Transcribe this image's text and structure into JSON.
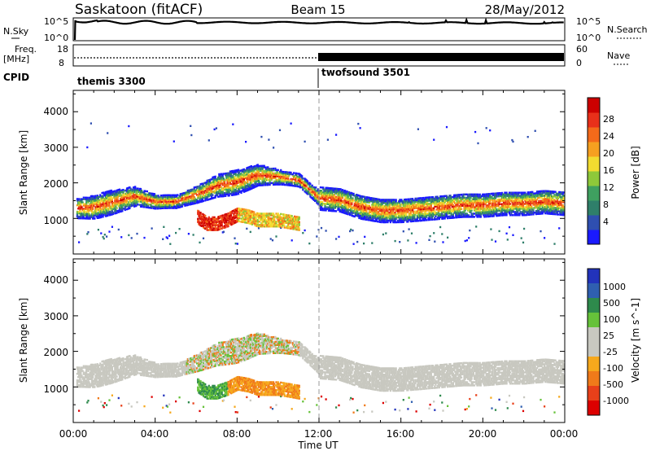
{
  "header": {
    "station": "Saskatoon (fitACF)",
    "beam": "Beam 15",
    "date": "28/May/2012"
  },
  "nsky_panel": {
    "left_label": "N.Sky",
    "left_ticks": [
      "10^5",
      "10^0"
    ],
    "right_ticks": [
      "10^5",
      "10^0"
    ],
    "right_label": "N.Search"
  },
  "freq_panel": {
    "left_label_1": "Freq.",
    "left_label_2": "[MHz]",
    "left_ticks": [
      "18",
      "8"
    ],
    "right_ticks": [
      "60",
      "0"
    ],
    "right_label": "Nave"
  },
  "cpid_panel": {
    "label": "CPID",
    "programs": [
      {
        "name": "themis 3300",
        "start_h": 0
      },
      {
        "name": "twofsound 3501",
        "start_h": 12
      }
    ]
  },
  "power_panel": {
    "ylabel": "Slant Range [km]",
    "yticks": [
      "4000",
      "3000",
      "2000",
      "1000"
    ],
    "colorbar_label": "Power [dB]",
    "colorbar_ticks": [
      "28",
      "24",
      "20",
      "16",
      "12",
      "8",
      "4"
    ],
    "colors": [
      "#1a1aff",
      "#2f4fb0",
      "#2f7f6a",
      "#3fa060",
      "#8ec83a",
      "#f2dc30",
      "#f6a020",
      "#f46a1a",
      "#e8301a",
      "#cc0000"
    ]
  },
  "velocity_panel": {
    "ylabel": "Slant Range [km]",
    "yticks": [
      "4000",
      "3000",
      "2000",
      "1000"
    ],
    "colorbar_label": "Velocity [m s^-1]",
    "colorbar_ticks": [
      "1000",
      "500",
      "100",
      "25",
      "-25",
      "-100",
      "-500",
      "-1000"
    ],
    "colors": [
      "#2233bb",
      "#2f5fb0",
      "#2e8a4c",
      "#66c23a",
      "#c8c8c0",
      "#c8c8c0",
      "#f6a81c",
      "#f07a1a",
      "#e8401a",
      "#dd0000"
    ],
    "ground_scatter_color": "#c8c8c0"
  },
  "xaxis": {
    "label": "Time UT",
    "ticks": [
      "00:00",
      "04:00",
      "08:00",
      "12:00",
      "16:00",
      "20:00",
      "00:00"
    ]
  },
  "chart_data": {
    "type": "heatmap",
    "title": "Saskatoon (fitACF)",
    "subtitle": "Beam 15",
    "date": "28/May/2012",
    "xlabel": "Time UT",
    "ylabel": "Slant Range [km]",
    "xlim_hours": [
      0,
      24
    ],
    "ylim_km": [
      0,
      4600
    ],
    "grid": false,
    "power_scale_db": [
      0,
      32
    ],
    "velocity_scale_ms": [
      -1000,
      1000
    ],
    "scatter_bands": [
      {
        "name": "",
        "t": [
          0,
          1,
          2,
          3,
          4,
          5,
          6,
          7,
          8,
          9,
          10,
          11,
          12,
          13,
          14,
          15,
          16,
          17,
          18,
          19,
          20,
          21,
          22,
          23,
          24
        ],
        "range_km": [
          1300,
          1350,
          1500,
          1650,
          1500,
          1500,
          1700,
          1950,
          2050,
          2250,
          2200,
          2100,
          1600,
          1550,
          1350,
          1250,
          1250,
          1300,
          1350,
          1400,
          1400,
          1450,
          1450,
          1500,
          1450
        ]
      },
      {
        "name": "",
        "t": [
          6.0,
          6.5,
          7,
          7.5,
          8,
          8.5,
          9,
          9.5,
          10,
          10.5,
          11
        ],
        "range_km": [
          1100,
          900,
          900,
          1000,
          1150,
          1100,
          1000,
          1000,
          1000,
          950,
          900
        ]
      }
    ],
    "nsky_log10": 4.5,
    "freq_mhz": {
      "t": [
        0,
        12,
        24
      ],
      "values": [
        11,
        11,
        11
      ]
    },
    "nave": {
      "t": [
        0,
        12,
        24
      ],
      "values": [
        30,
        45,
        45
      ]
    }
  }
}
